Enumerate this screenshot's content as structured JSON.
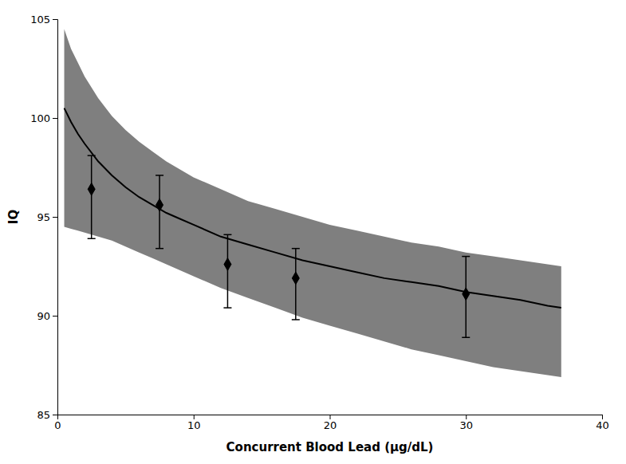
{
  "chart_data": {
    "type": "line",
    "xlabel": "Concurrent Blood Lead (μg/dL)",
    "ylabel": "IQ",
    "xlim": [
      0,
      40
    ],
    "ylim": [
      85,
      105
    ],
    "xticks": [
      0,
      10,
      20,
      30,
      40
    ],
    "yticks": [
      85,
      90,
      95,
      100,
      105
    ],
    "grid": false,
    "x": [
      0.5,
      1.0,
      1.5,
      2.0,
      3.0,
      4.0,
      5.0,
      6.0,
      7.0,
      8.0,
      9.0,
      10.0,
      12.0,
      14.0,
      16.0,
      18.0,
      20.0,
      22.0,
      24.0,
      26.0,
      28.0,
      30.0,
      32.0,
      34.0,
      36.0,
      37.0
    ],
    "series": [
      {
        "type": "area",
        "color": "#7f7f7f",
        "lower": [
          94.5,
          94.4,
          94.3,
          94.2,
          94.0,
          93.8,
          93.5,
          93.2,
          92.9,
          92.6,
          92.3,
          92.0,
          91.4,
          90.9,
          90.4,
          89.9,
          89.5,
          89.1,
          88.7,
          88.3,
          88.0,
          87.7,
          87.4,
          87.2,
          87.0,
          86.9
        ],
        "upper": [
          104.5,
          103.5,
          102.8,
          102.1,
          101.0,
          100.1,
          99.4,
          98.8,
          98.3,
          97.8,
          97.4,
          97.0,
          96.4,
          95.8,
          95.4,
          95.0,
          94.6,
          94.3,
          94.0,
          93.7,
          93.5,
          93.2,
          93.0,
          92.8,
          92.6,
          92.5
        ]
      },
      {
        "type": "line",
        "color": "#000000",
        "values": [
          100.5,
          99.8,
          99.2,
          98.7,
          97.8,
          97.1,
          96.5,
          96.0,
          95.6,
          95.2,
          94.9,
          94.6,
          94.0,
          93.6,
          93.2,
          92.8,
          92.5,
          92.2,
          91.9,
          91.7,
          91.5,
          91.2,
          91.0,
          90.8,
          90.5,
          90.4
        ]
      },
      {
        "type": "scatter",
        "color": "#000000",
        "marker": "diamond",
        "x": [
          2.5,
          7.5,
          12.5,
          17.5,
          30.0
        ],
        "values": [
          96.4,
          95.6,
          92.6,
          91.9,
          91.1
        ],
        "error_minus": [
          2.5,
          2.2,
          2.2,
          2.1,
          2.2
        ],
        "error_plus": [
          1.7,
          1.5,
          1.5,
          1.5,
          1.9
        ]
      }
    ]
  }
}
